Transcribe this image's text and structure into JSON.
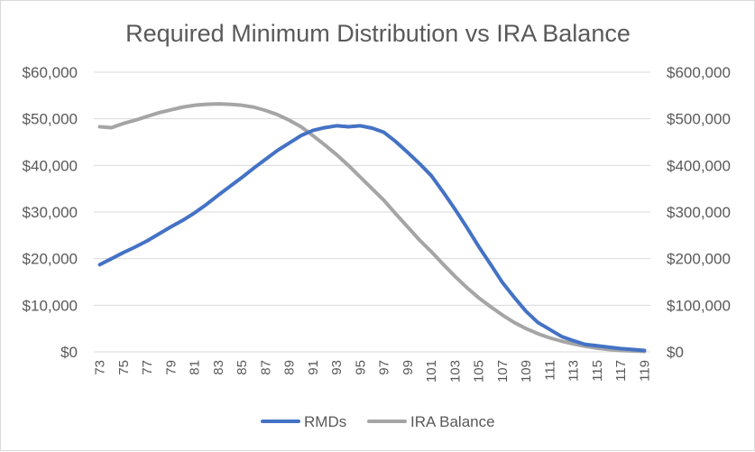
{
  "chart_data": {
    "type": "line",
    "title": "Required Minimum Distribution vs IRA Balance",
    "x": [
      73,
      74,
      75,
      76,
      77,
      78,
      79,
      80,
      81,
      82,
      83,
      84,
      85,
      86,
      87,
      88,
      89,
      90,
      91,
      92,
      93,
      94,
      95,
      96,
      97,
      98,
      99,
      100,
      101,
      102,
      103,
      104,
      105,
      106,
      107,
      108,
      109,
      110,
      111,
      112,
      113,
      114,
      115,
      116,
      117,
      118,
      119
    ],
    "x_tick_labels": [
      "73",
      "75",
      "77",
      "79",
      "81",
      "83",
      "85",
      "87",
      "89",
      "91",
      "93",
      "95",
      "97",
      "99",
      "101",
      "103",
      "105",
      "107",
      "109",
      "111",
      "113",
      "115",
      "117",
      "119"
    ],
    "y_left": {
      "ylim": [
        0,
        60000
      ],
      "ticks": [
        "$0",
        "$10,000",
        "$20,000",
        "$30,000",
        "$40,000",
        "$50,000",
        "$60,000"
      ]
    },
    "y_right": {
      "ylim": [
        0,
        600000
      ],
      "ticks": [
        "$0",
        "$100,000",
        "$200,000",
        "$300,000",
        "$400,000",
        "$500,000",
        "$600,000"
      ]
    },
    "grid": "horizontal",
    "legend_position": "bottom",
    "series": [
      {
        "name": "RMDs",
        "axis": "left",
        "color": "#4472C4",
        "values": [
          18700,
          20000,
          21300,
          22500,
          23800,
          25300,
          26800,
          28200,
          29800,
          31600,
          33600,
          35500,
          37400,
          39400,
          41300,
          43200,
          44800,
          46400,
          47500,
          48100,
          48500,
          48300,
          48500,
          48000,
          47100,
          45100,
          42800,
          40400,
          37800,
          34300,
          30600,
          26700,
          22600,
          18800,
          14900,
          11700,
          8700,
          6300,
          4800,
          3300,
          2400,
          1600,
          1300,
          1000,
          700,
          500,
          300
        ],
        "note_values_indexed_by_x": true
      },
      {
        "name": "IRA Balance",
        "axis": "right",
        "color": "#A5A5A5",
        "values": [
          483000,
          481000,
          490000,
          497000,
          505000,
          513000,
          519000,
          525000,
          529000,
          531000,
          532000,
          531000,
          529000,
          525000,
          518000,
          509000,
          497000,
          483000,
          464000,
          444000,
          423000,
          400000,
          375000,
          350000,
          325000,
          296000,
          268000,
          240000,
          215000,
          188000,
          162000,
          138000,
          116000,
          97000,
          79000,
          63000,
          50000,
          39000,
          30000,
          23000,
          17000,
          12000,
          8000,
          5000,
          3000,
          2000,
          1000
        ]
      }
    ]
  }
}
